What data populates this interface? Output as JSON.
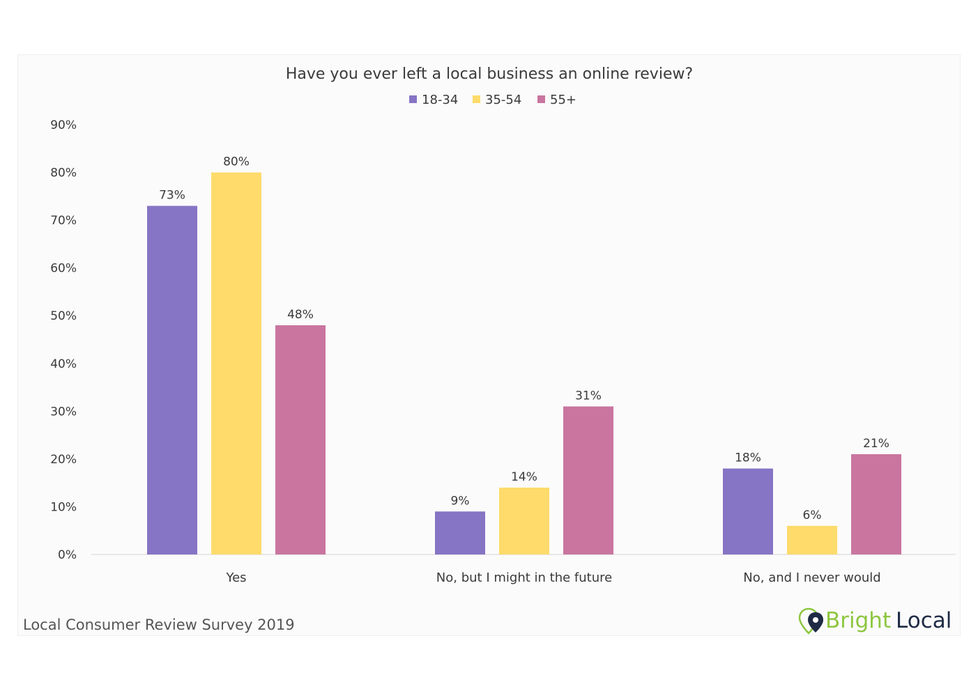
{
  "chart_data": {
    "type": "bar",
    "title": "Have you ever left a local business an online review?",
    "categories": [
      "Yes",
      "No, but I might in the future",
      "No, and I never would"
    ],
    "series": [
      {
        "name": "18-34",
        "color": "#8674c4",
        "values": [
          73,
          9,
          18
        ],
        "labels": [
          "73%",
          "9%",
          "18%"
        ]
      },
      {
        "name": "35-54",
        "color": "#fedb6b",
        "values": [
          80,
          14,
          6
        ],
        "labels": [
          "80%",
          "14%",
          "6%"
        ]
      },
      {
        "name": "55+",
        "color": "#c975a0",
        "values": [
          48,
          31,
          21
        ],
        "labels": [
          "48%",
          "31%",
          "21%"
        ]
      }
    ],
    "ylim": [
      0,
      90
    ],
    "yticks": [
      0,
      10,
      20,
      30,
      40,
      50,
      60,
      70,
      80,
      90
    ],
    "ytick_labels": [
      "0%",
      "10%",
      "20%",
      "30%",
      "40%",
      "50%",
      "60%",
      "70%",
      "80%",
      "90%"
    ],
    "grid": false,
    "legend_position": "top-center",
    "xlabel": "",
    "ylabel": ""
  },
  "footer": {
    "source": "Local Consumer Review Survey 2019"
  },
  "brand": {
    "logo_text": "BrightLocal",
    "logo_part1": "Bright",
    "logo_part2": "Local",
    "icon": "map-pin-icon",
    "color_bright": "#8dc63f",
    "color_local": "#1f2b45"
  }
}
